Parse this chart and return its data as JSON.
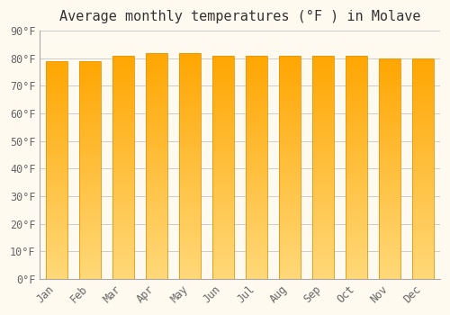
{
  "title": "Average monthly temperatures (°F ) in Molave",
  "months": [
    "Jan",
    "Feb",
    "Mar",
    "Apr",
    "May",
    "Jun",
    "Jul",
    "Aug",
    "Sep",
    "Oct",
    "Nov",
    "Dec"
  ],
  "values": [
    79,
    79,
    81,
    82,
    82,
    81,
    81,
    81,
    81,
    81,
    80,
    80
  ],
  "ylim": [
    0,
    90
  ],
  "yticks": [
    0,
    10,
    20,
    30,
    40,
    50,
    60,
    70,
    80,
    90
  ],
  "ytick_labels": [
    "0°F",
    "10°F",
    "20°F",
    "30°F",
    "40°F",
    "50°F",
    "60°F",
    "70°F",
    "80°F",
    "90°F"
  ],
  "bar_color_top": "#FFA500",
  "bar_color_bottom": "#FFD878",
  "bar_edge_color": "#E8950A",
  "background_color": "#FFFAF0",
  "grid_color": "#CCCCCC",
  "title_fontsize": 11,
  "tick_fontsize": 8.5,
  "title_color": "#333333",
  "tick_color": "#666666",
  "bar_width": 0.65
}
